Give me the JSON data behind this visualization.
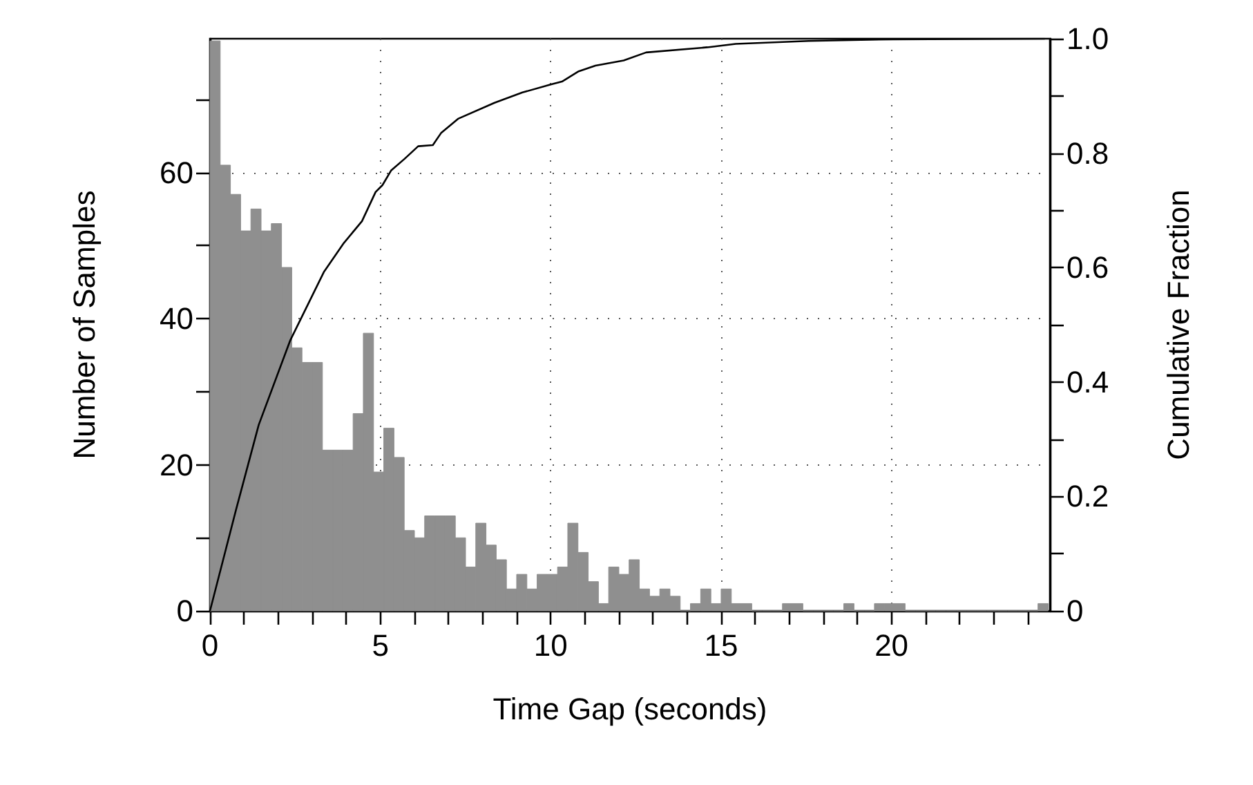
{
  "chart_data": {
    "type": "histogram",
    "xlabel": "Time Gap (seconds)",
    "ylabel": "Number of Samples",
    "y2label": "Cumulative Fraction",
    "bins": [
      0,
      0.3,
      0.6,
      0.9,
      1.2,
      1.5,
      1.8,
      2.1,
      2.4,
      2.7,
      3,
      3.3,
      3.6,
      3.9,
      4.2,
      4.5,
      4.8,
      5.1,
      5.4,
      5.7,
      6,
      6.3,
      6.6,
      6.9,
      7.2,
      7.5,
      7.8,
      8.1,
      8.4,
      8.7,
      9,
      9.3,
      9.6,
      9.9,
      10.2,
      10.5,
      10.8,
      11.1,
      11.4,
      11.7,
      12,
      12.3,
      12.6,
      12.9,
      13.2,
      13.5,
      13.8,
      14.1,
      14.4,
      14.7,
      15,
      15.3,
      15.6,
      15.9,
      16.2,
      16.5,
      16.8,
      17.1,
      17.4,
      17.7,
      18,
      18.3,
      18.6,
      18.9,
      19.2,
      19.5,
      19.8,
      20.1,
      20.4,
      20.7,
      21,
      21.3,
      21.6,
      21.9,
      22.2,
      22.5,
      22.8,
      23.1,
      23.4,
      23.7,
      24,
      24.3,
      24.6
    ],
    "values": [
      78,
      61,
      57,
      52,
      55,
      52,
      53,
      47,
      36,
      34,
      34,
      22,
      22,
      22,
      27,
      38,
      19,
      25,
      21,
      11,
      10,
      13,
      13,
      13,
      10,
      6,
      12,
      9,
      7,
      3,
      5,
      3,
      5,
      5,
      6,
      12,
      8,
      4,
      1,
      6,
      5,
      7,
      3,
      2,
      3,
      2,
      0,
      1,
      3,
      1,
      3,
      1,
      1,
      0,
      0,
      0,
      1,
      1,
      0,
      0,
      0,
      0,
      1,
      0,
      0,
      1,
      1,
      1,
      0,
      0,
      0,
      0,
      0,
      0,
      0,
      0,
      0,
      0,
      0,
      0,
      0,
      1
    ],
    "color": "#8f8f8f",
    "series": [
      {
        "type": "line",
        "axis": "y2",
        "color": "#000000",
        "x": [
          0,
          0.77,
          1.43,
          2.35,
          3.34,
          3.93,
          4.46,
          4.86,
          5.06,
          5.32,
          5.71,
          6.11,
          6.54,
          6.78,
          7.28,
          8.35,
          9.17,
          10.0,
          10.33,
          10.82,
          11.31,
          12.14,
          12.8,
          14.6,
          15.43,
          17.57,
          20.04,
          24.5
        ],
        "values": [
          0,
          0.178,
          0.325,
          0.472,
          0.592,
          0.643,
          0.681,
          0.732,
          0.744,
          0.77,
          0.79,
          0.812,
          0.814,
          0.835,
          0.86,
          0.888,
          0.906,
          0.92,
          0.925,
          0.943,
          0.953,
          0.962,
          0.976,
          0.985,
          0.991,
          0.996,
          0.999,
          1.0
        ]
      }
    ],
    "xlim": [
      0,
      24.65
    ],
    "xticks": [
      0,
      {
        "value": 1,
        "label": null
      },
      {
        "value": 2,
        "label": null
      },
      {
        "value": 3,
        "label": null
      },
      {
        "value": 4,
        "label": null
      },
      5,
      {
        "value": 6,
        "label": null
      },
      {
        "value": 7,
        "label": null
      },
      {
        "value": 8,
        "label": null
      },
      {
        "value": 9,
        "label": null
      },
      10,
      {
        "value": 11,
        "label": null
      },
      {
        "value": 12,
        "label": null
      },
      {
        "value": 13,
        "label": null
      },
      {
        "value": 14,
        "label": null
      },
      15,
      {
        "value": 16,
        "label": null
      },
      {
        "value": 17,
        "label": null
      },
      {
        "value": 18,
        "label": null
      },
      {
        "value": 19,
        "label": null
      },
      20,
      {
        "value": 21,
        "label": null
      },
      {
        "value": 22,
        "label": null
      },
      {
        "value": 23,
        "label": null
      },
      {
        "value": 24,
        "label": null
      }
    ],
    "ylim": [
      0,
      78.3
    ],
    "yticks": [
      0,
      {
        "value": 10,
        "label": null
      },
      20,
      {
        "value": 30,
        "label": null
      },
      40,
      {
        "value": 50,
        "label": null
      },
      60,
      {
        "value": 70,
        "label": null
      }
    ],
    "y2lim": [
      0,
      1
    ],
    "y2ticks": [
      0,
      {
        "value": 0.1,
        "label": null
      },
      0.2,
      {
        "value": 0.3,
        "label": null
      },
      0.4,
      {
        "value": 0.5,
        "label": null
      },
      0.6,
      {
        "value": 0.7,
        "label": null
      },
      0.8,
      {
        "value": 0.9,
        "label": null
      },
      {
        "value": 1,
        "label": "1.0"
      }
    ],
    "grid": true,
    "legend": false,
    "marker": "none",
    "line_style": "solid"
  }
}
